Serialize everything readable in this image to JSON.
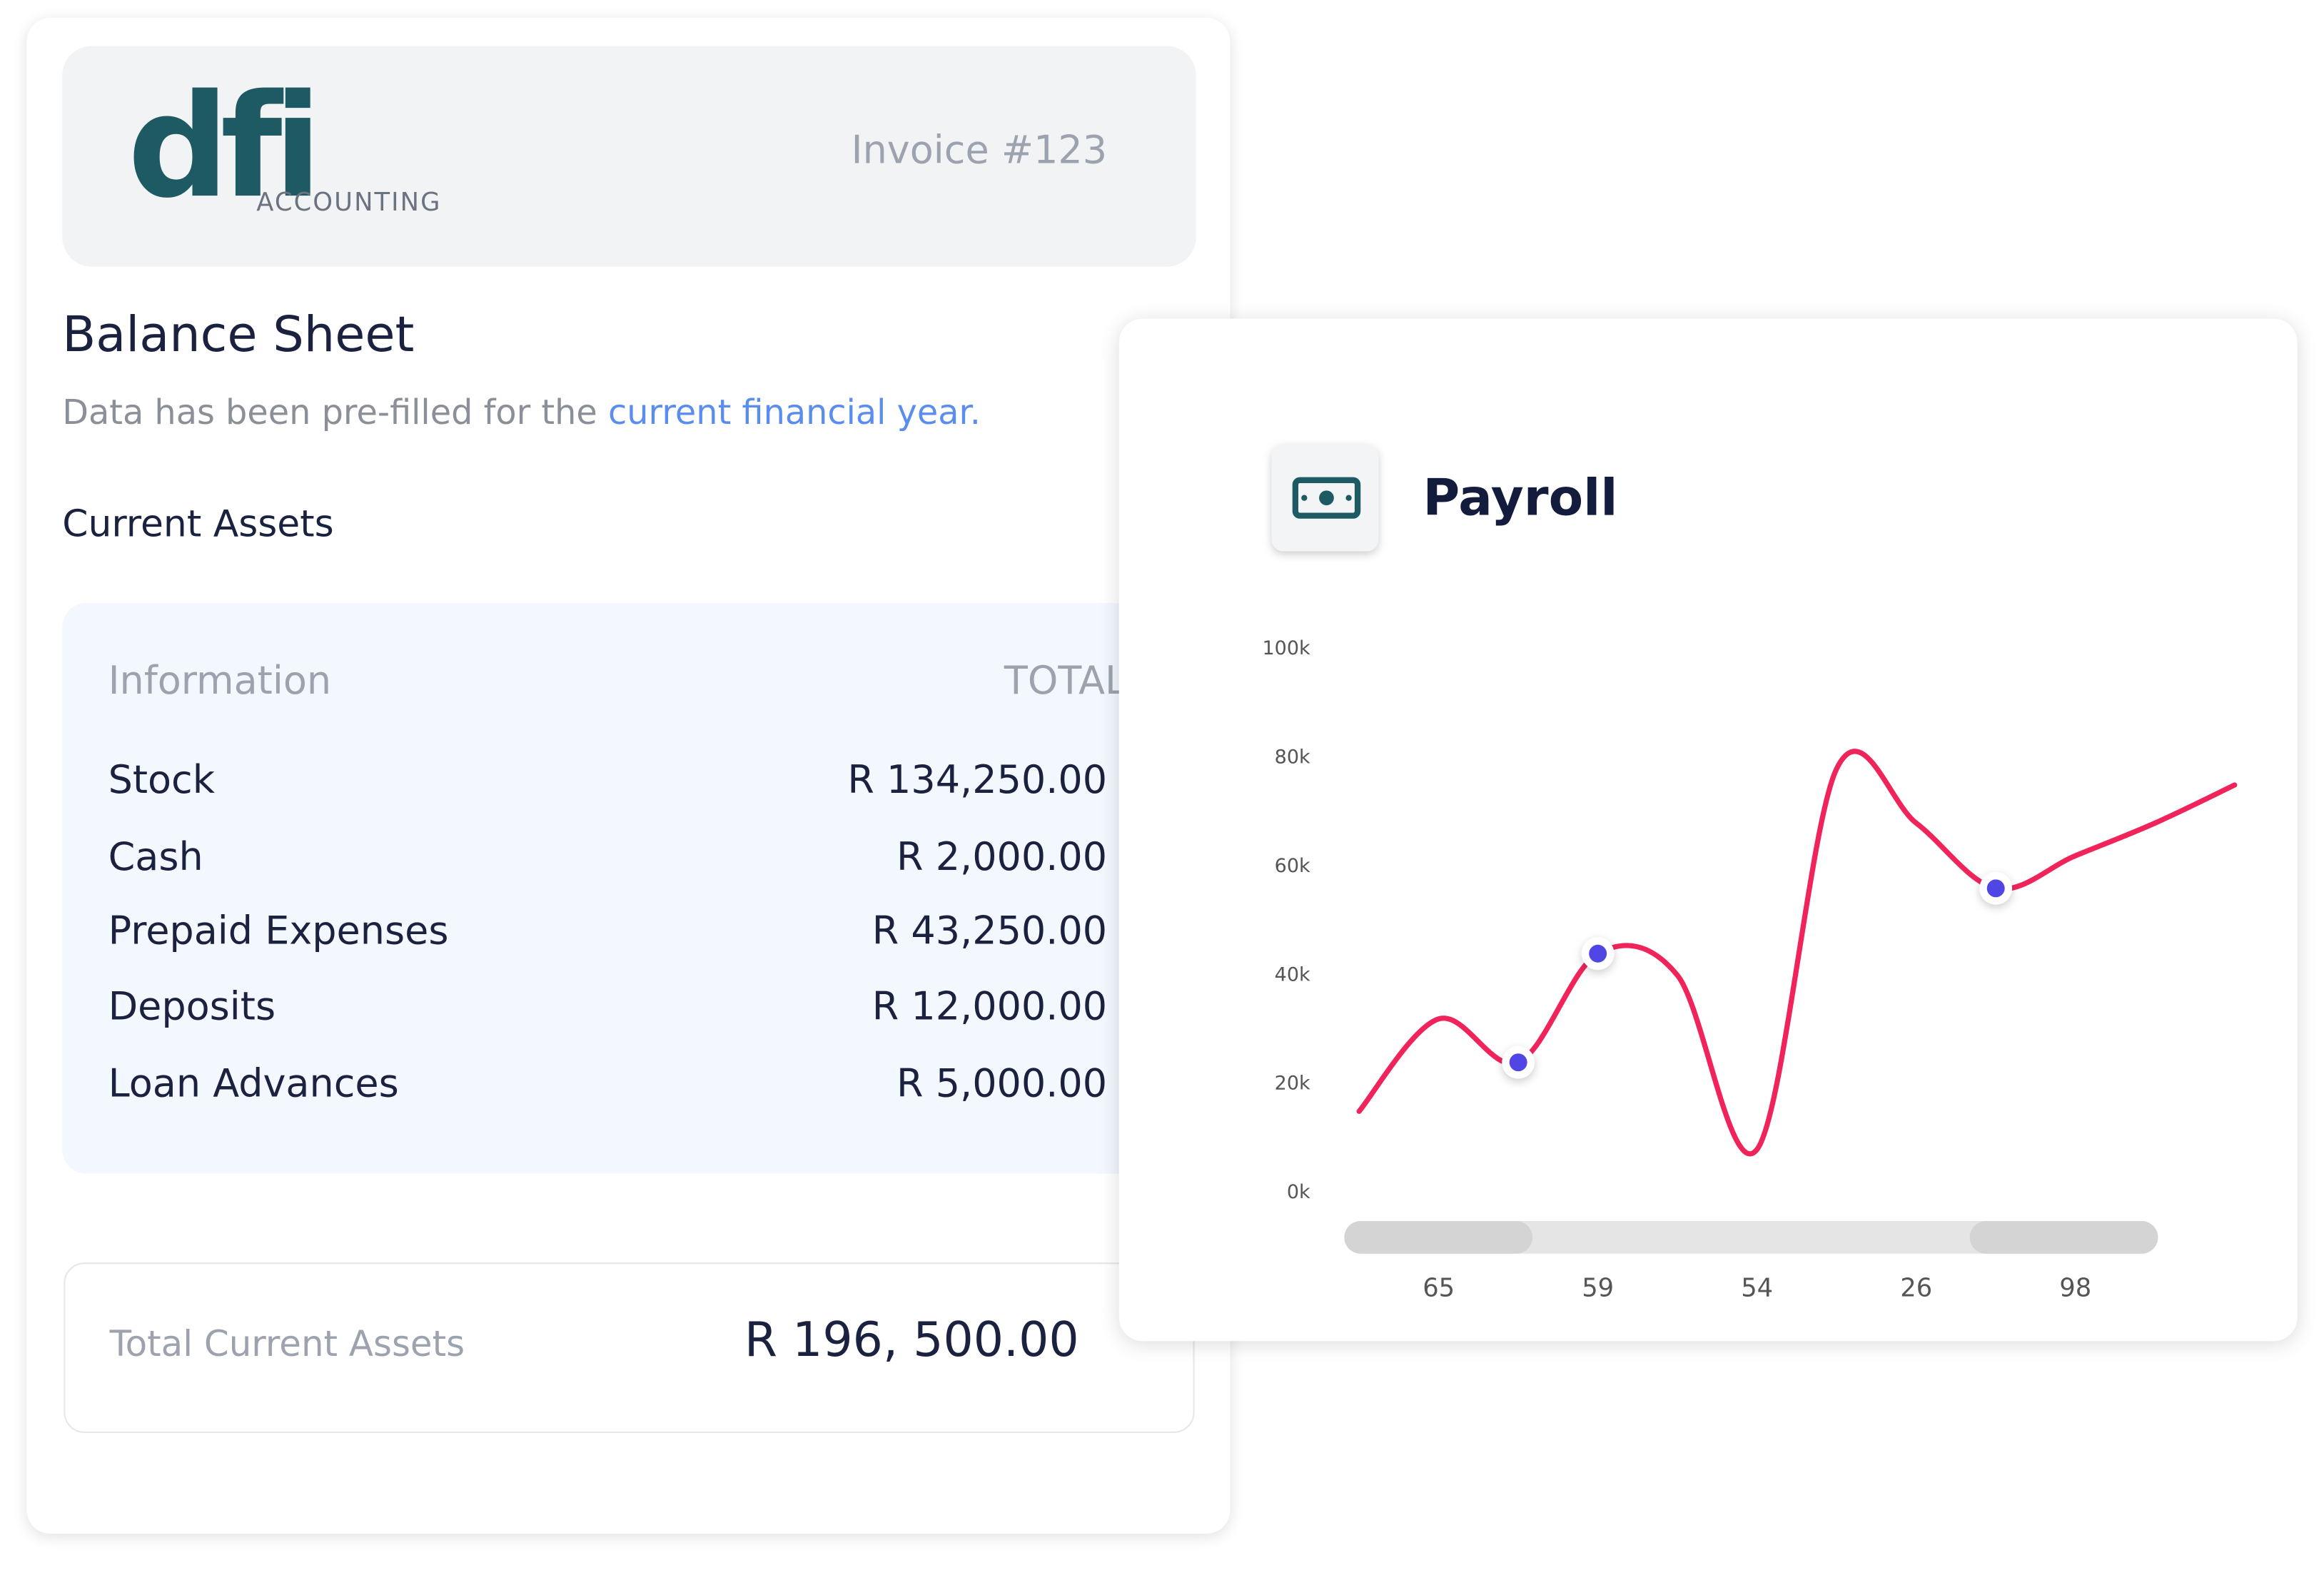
{
  "header": {
    "logo": {
      "mark": "dfi",
      "sub": "ACCOUNTING"
    },
    "invoice": "Invoice #123"
  },
  "balance_sheet": {
    "title": "Balance Sheet",
    "note": "Data has been pre-filled for the",
    "note_link": "current financial year.",
    "section": "Current Assets",
    "table": {
      "header": [
        "Information",
        "TOTAL"
      ],
      "rows": [
        [
          "Stock",
          "R 134,250.00"
        ],
        [
          "Cash",
          "R 2,000.00"
        ],
        [
          "Prepaid Expenses",
          "R 43,250.00"
        ],
        [
          "Deposits",
          "R 12,000.00"
        ],
        [
          "Loan Advances",
          "R 5,000.00"
        ]
      ]
    },
    "total": {
      "label": "Total Current Assets",
      "value": "R 196, 500.00"
    }
  },
  "chart_data": {
    "type": "line",
    "title": "Payroll",
    "categories": [
      null,
      "65",
      null,
      "59",
      null,
      "54",
      null,
      "26",
      null,
      "98",
      null,
      null
    ],
    "series": [
      {
        "color": "#f0245a",
        "values": [
          15000,
          32000,
          24000,
          44000,
          40000,
          8000,
          78000,
          68000,
          56000,
          62000,
          68000,
          75000
        ]
      },
      {
        "color": "#4f46e5",
        "style": "markers",
        "values": [
          null,
          null,
          24000,
          44000,
          null,
          null,
          null,
          null,
          56000,
          null,
          null,
          null
        ]
      }
    ],
    "ylim": [
      0,
      100000
    ],
    "yticks": [
      {
        "value": 0,
        "label": "0k"
      },
      {
        "value": 20000,
        "label": "20k"
      },
      {
        "value": 40000,
        "label": "40k"
      },
      {
        "value": 60000,
        "label": "60k"
      },
      {
        "value": 80000,
        "label": "80k"
      },
      {
        "value": 100000,
        "label": "100k"
      }
    ]
  }
}
